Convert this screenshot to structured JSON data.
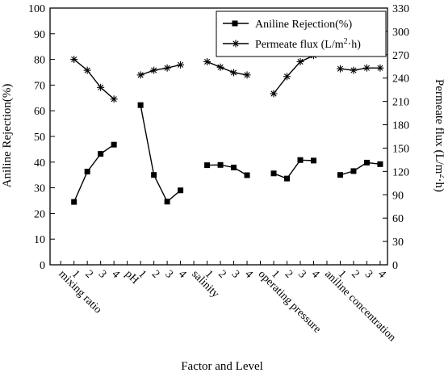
{
  "chart_data": {
    "type": "line",
    "xlabel": "Factor and Level",
    "ylabel_left": "Aniline Rejection(%)",
    "ylabel_right": "Permeate flux (L/m²·h)",
    "ylim_left": [
      0,
      100
    ],
    "ylim_right": [
      0,
      330
    ],
    "yticks_left": [
      0,
      10,
      20,
      30,
      40,
      50,
      60,
      70,
      80,
      90,
      100
    ],
    "yticks_right": [
      0,
      30,
      60,
      90,
      120,
      150,
      180,
      210,
      240,
      270,
      300,
      330
    ],
    "grid": false,
    "legend_position": "top-right",
    "factors": [
      {
        "name": "mixing ratio",
        "levels": [
          "1",
          "2",
          "3",
          "4"
        ]
      },
      {
        "name": "pH",
        "levels": [
          "1",
          "2",
          "3",
          "4"
        ]
      },
      {
        "name": "salinity",
        "levels": [
          "1",
          "2",
          "3",
          "4"
        ]
      },
      {
        "name": "operating pressure",
        "levels": [
          "1",
          "2",
          "3",
          "4"
        ]
      },
      {
        "name": "aniline concentration",
        "levels": [
          "1",
          "2",
          "3",
          "4"
        ]
      }
    ],
    "series": [
      {
        "name": "Aniline Rejection(%)",
        "axis": "left",
        "marker": "square",
        "color": "#000000",
        "groups": [
          [
            24.5,
            36.3,
            43.2,
            46.8
          ],
          [
            62.2,
            35.0,
            24.6,
            29.0
          ],
          [
            38.8,
            38.9,
            37.9,
            34.9
          ],
          [
            35.6,
            33.6,
            40.8,
            40.6
          ],
          [
            35.0,
            36.5,
            39.8,
            39.2
          ]
        ]
      },
      {
        "name": "Permeate flux (L/m²·h)",
        "axis": "right",
        "marker": "asterisk",
        "color": "#000000",
        "groups": [
          [
            264,
            250,
            228,
            213
          ],
          [
            244,
            250,
            253,
            257
          ],
          [
            261,
            254,
            247,
            244
          ],
          [
            220,
            242,
            261,
            269
          ],
          [
            252,
            250,
            253,
            253
          ]
        ]
      }
    ]
  }
}
